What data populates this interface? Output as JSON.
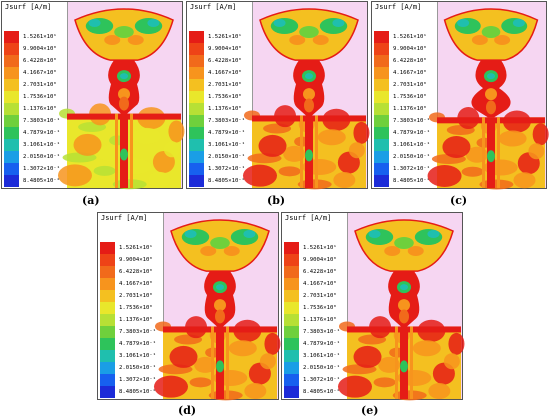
{
  "legend": {
    "title": "Jsurf [A/m]",
    "values": [
      "1.5261×10¹",
      "9.9004×10⁰",
      "6.4228×10⁰",
      "4.1667×10⁰",
      "2.7031×10⁰",
      "1.7536×10⁰",
      "1.1376×10⁰",
      "7.3803×10⁻¹",
      "4.7879×10⁻¹",
      "3.1061×10⁻¹",
      "2.0150×10⁻¹",
      "1.3072×10⁻¹",
      "8.4805×10⁻²"
    ],
    "colors": [
      "#e51c16",
      "#ee4317",
      "#f16a1b",
      "#f7941d",
      "#f4c020",
      "#e9e72b",
      "#b7e035",
      "#6fd03c",
      "#2ec35b",
      "#1fbfae",
      "#1a9ee6",
      "#1760ef",
      "#1c2bd8"
    ]
  },
  "panels": [
    {
      "caption": "(a)"
    },
    {
      "caption": "(b)"
    },
    {
      "caption": "(c)"
    },
    {
      "caption": "(d)"
    },
    {
      "caption": "(e)"
    }
  ]
}
